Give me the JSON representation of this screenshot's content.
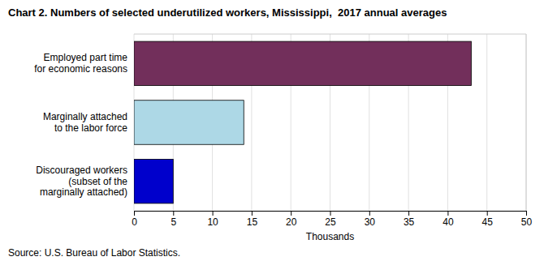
{
  "chart_data": {
    "type": "bar",
    "orientation": "horizontal",
    "title": "Chart 2. Numbers of selected underutilized workers, Mississippi,  2017 annual averages",
    "categories": [
      "Discouraged workers\n(subset of the\nmarginally attached)",
      "Marginally attached\nto the labor force",
      "Employed part time\nfor economic reasons"
    ],
    "values": [
      5,
      14,
      43
    ],
    "colors": [
      "#0000cc",
      "#add8e6",
      "#722f5b"
    ],
    "xlim": [
      0,
      50
    ],
    "xticks": [
      0,
      5,
      10,
      15,
      20,
      25,
      30,
      35,
      40,
      45,
      50
    ],
    "xlabel": "Thousands",
    "annotations": [
      "Source: U.S. Bureau of Labor Statistics."
    ],
    "grid": true
  }
}
